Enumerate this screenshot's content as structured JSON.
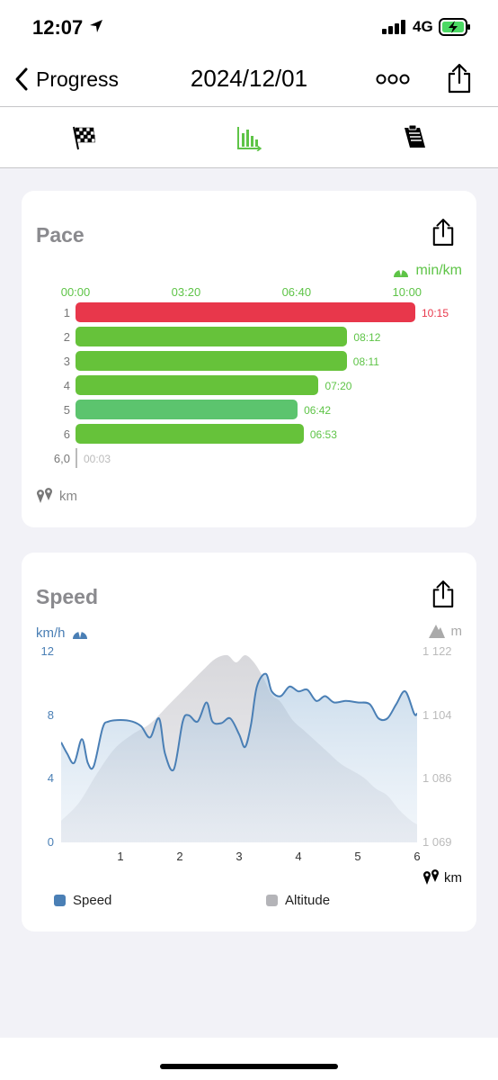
{
  "status_bar": {
    "time": "12:07",
    "network": "4G"
  },
  "nav": {
    "back_label": "Progress",
    "title": "2024/12/01"
  },
  "tabs": [
    "finish-flag-icon",
    "chart-icon",
    "notes-icon"
  ],
  "colors": {
    "accent_green": "#5ec447",
    "slow_red": "#e8374b",
    "speed_blue": "#4a7fb5",
    "altitude_gray": "#b4b4b8"
  },
  "pace": {
    "title": "Pace",
    "unit": "min/km",
    "distance_unit": "km",
    "chart_data": {
      "type": "bar",
      "orientation": "horizontal",
      "x_ticks": [
        "00:00",
        "03:20",
        "06:40",
        "10:00"
      ],
      "xlim_seconds": [
        0,
        615
      ],
      "categories": [
        "1",
        "2",
        "3",
        "4",
        "5",
        "6",
        "6,0"
      ],
      "labels": [
        "10:15",
        "08:12",
        "08:11",
        "07:20",
        "06:42",
        "06:53",
        "00:03"
      ],
      "values_seconds": [
        615,
        492,
        491,
        440,
        402,
        413,
        3
      ]
    }
  },
  "speed": {
    "title": "Speed",
    "unit": "km/h",
    "alt_unit": "m",
    "distance_unit": "km",
    "chart_data": {
      "type": "area",
      "x_ticks": [
        "1",
        "2",
        "3",
        "4",
        "5",
        "6"
      ],
      "xlim": [
        0,
        6
      ],
      "y_ticks": [
        "0",
        "4",
        "8",
        "12"
      ],
      "ylim": [
        0,
        12
      ],
      "y2_ticks": [
        "1 069",
        "1 086",
        "1 104",
        "1 122"
      ],
      "y2lim": [
        1069,
        1122
      ],
      "series": [
        {
          "name": "Speed",
          "x": [
            0,
            0.1,
            0.22,
            0.35,
            0.45,
            0.55,
            0.7,
            0.8,
            1.0,
            1.2,
            1.35,
            1.5,
            1.65,
            1.75,
            1.9,
            2.05,
            2.15,
            2.3,
            2.45,
            2.55,
            2.7,
            2.85,
            3.0,
            3.1,
            3.2,
            3.3,
            3.45,
            3.55,
            3.7,
            3.85,
            4.0,
            4.15,
            4.3,
            4.45,
            4.6,
            4.8,
            5.0,
            5.2,
            5.35,
            5.5,
            5.65,
            5.8,
            5.95,
            6.0
          ],
          "y": [
            6.3,
            5.6,
            5.0,
            6.5,
            5.0,
            4.8,
            7.2,
            7.6,
            7.7,
            7.6,
            7.3,
            6.6,
            7.8,
            5.6,
            4.6,
            7.6,
            8.0,
            7.6,
            8.8,
            7.6,
            7.5,
            7.8,
            6.8,
            6.0,
            7.4,
            9.8,
            10.6,
            9.5,
            9.2,
            9.8,
            9.5,
            9.6,
            8.9,
            9.2,
            8.8,
            8.9,
            8.8,
            8.7,
            7.8,
            7.8,
            8.7,
            9.5,
            8.1,
            8.1
          ]
        },
        {
          "name": "Altitude",
          "x": [
            0,
            0.3,
            0.6,
            0.9,
            1.2,
            1.5,
            1.8,
            2.1,
            2.4,
            2.6,
            2.8,
            2.95,
            3.1,
            3.25,
            3.4,
            3.55,
            3.7,
            3.9,
            4.1,
            4.3,
            4.5,
            4.7,
            4.9,
            5.1,
            5.3,
            5.5,
            5.7,
            5.9,
            6.0
          ],
          "y": [
            1075,
            1080,
            1088,
            1095,
            1099,
            1102,
            1107,
            1112,
            1117,
            1120,
            1121,
            1119,
            1121,
            1119,
            1115,
            1110,
            1108,
            1103,
            1100,
            1097,
            1094,
            1091,
            1089,
            1087,
            1084,
            1082,
            1078,
            1075,
            1074
          ]
        }
      ]
    }
  }
}
